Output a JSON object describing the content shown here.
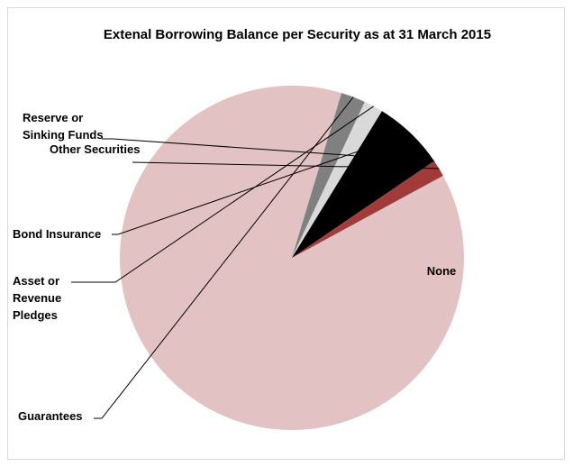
{
  "chart_data": {
    "type": "pie",
    "title": "Extenal Borrowing Balance per Security as at 31 March 2015",
    "slices": [
      {
        "label": "None",
        "label_lines": [
          "None"
        ],
        "value": 87.4,
        "color": "#e2c2c2"
      },
      {
        "label": "Guarantees",
        "label_lines": [
          "Guarantees"
        ],
        "value": 2.3,
        "color": "#808080"
      },
      {
        "label": "Asset or Revenue Pledges",
        "label_lines": [
          "Asset or",
          "Revenue",
          "Pledges"
        ],
        "value": 1.8,
        "color": "#d9d9d9"
      },
      {
        "label": "Bond Insurance",
        "label_lines": [
          "Bond Insurance"
        ],
        "value": 6.7,
        "color": "#000000"
      },
      {
        "label": "Reserve or Sinking Funds",
        "label_lines": [
          "Reserve or",
          "Sinking Funds"
        ],
        "value": 0.1,
        "color": "#404040"
      },
      {
        "label": "Other Securities",
        "label_lines": [
          "Other Securities"
        ],
        "value": 1.5,
        "color": "#a33a3a"
      }
    ],
    "legend": "none"
  }
}
